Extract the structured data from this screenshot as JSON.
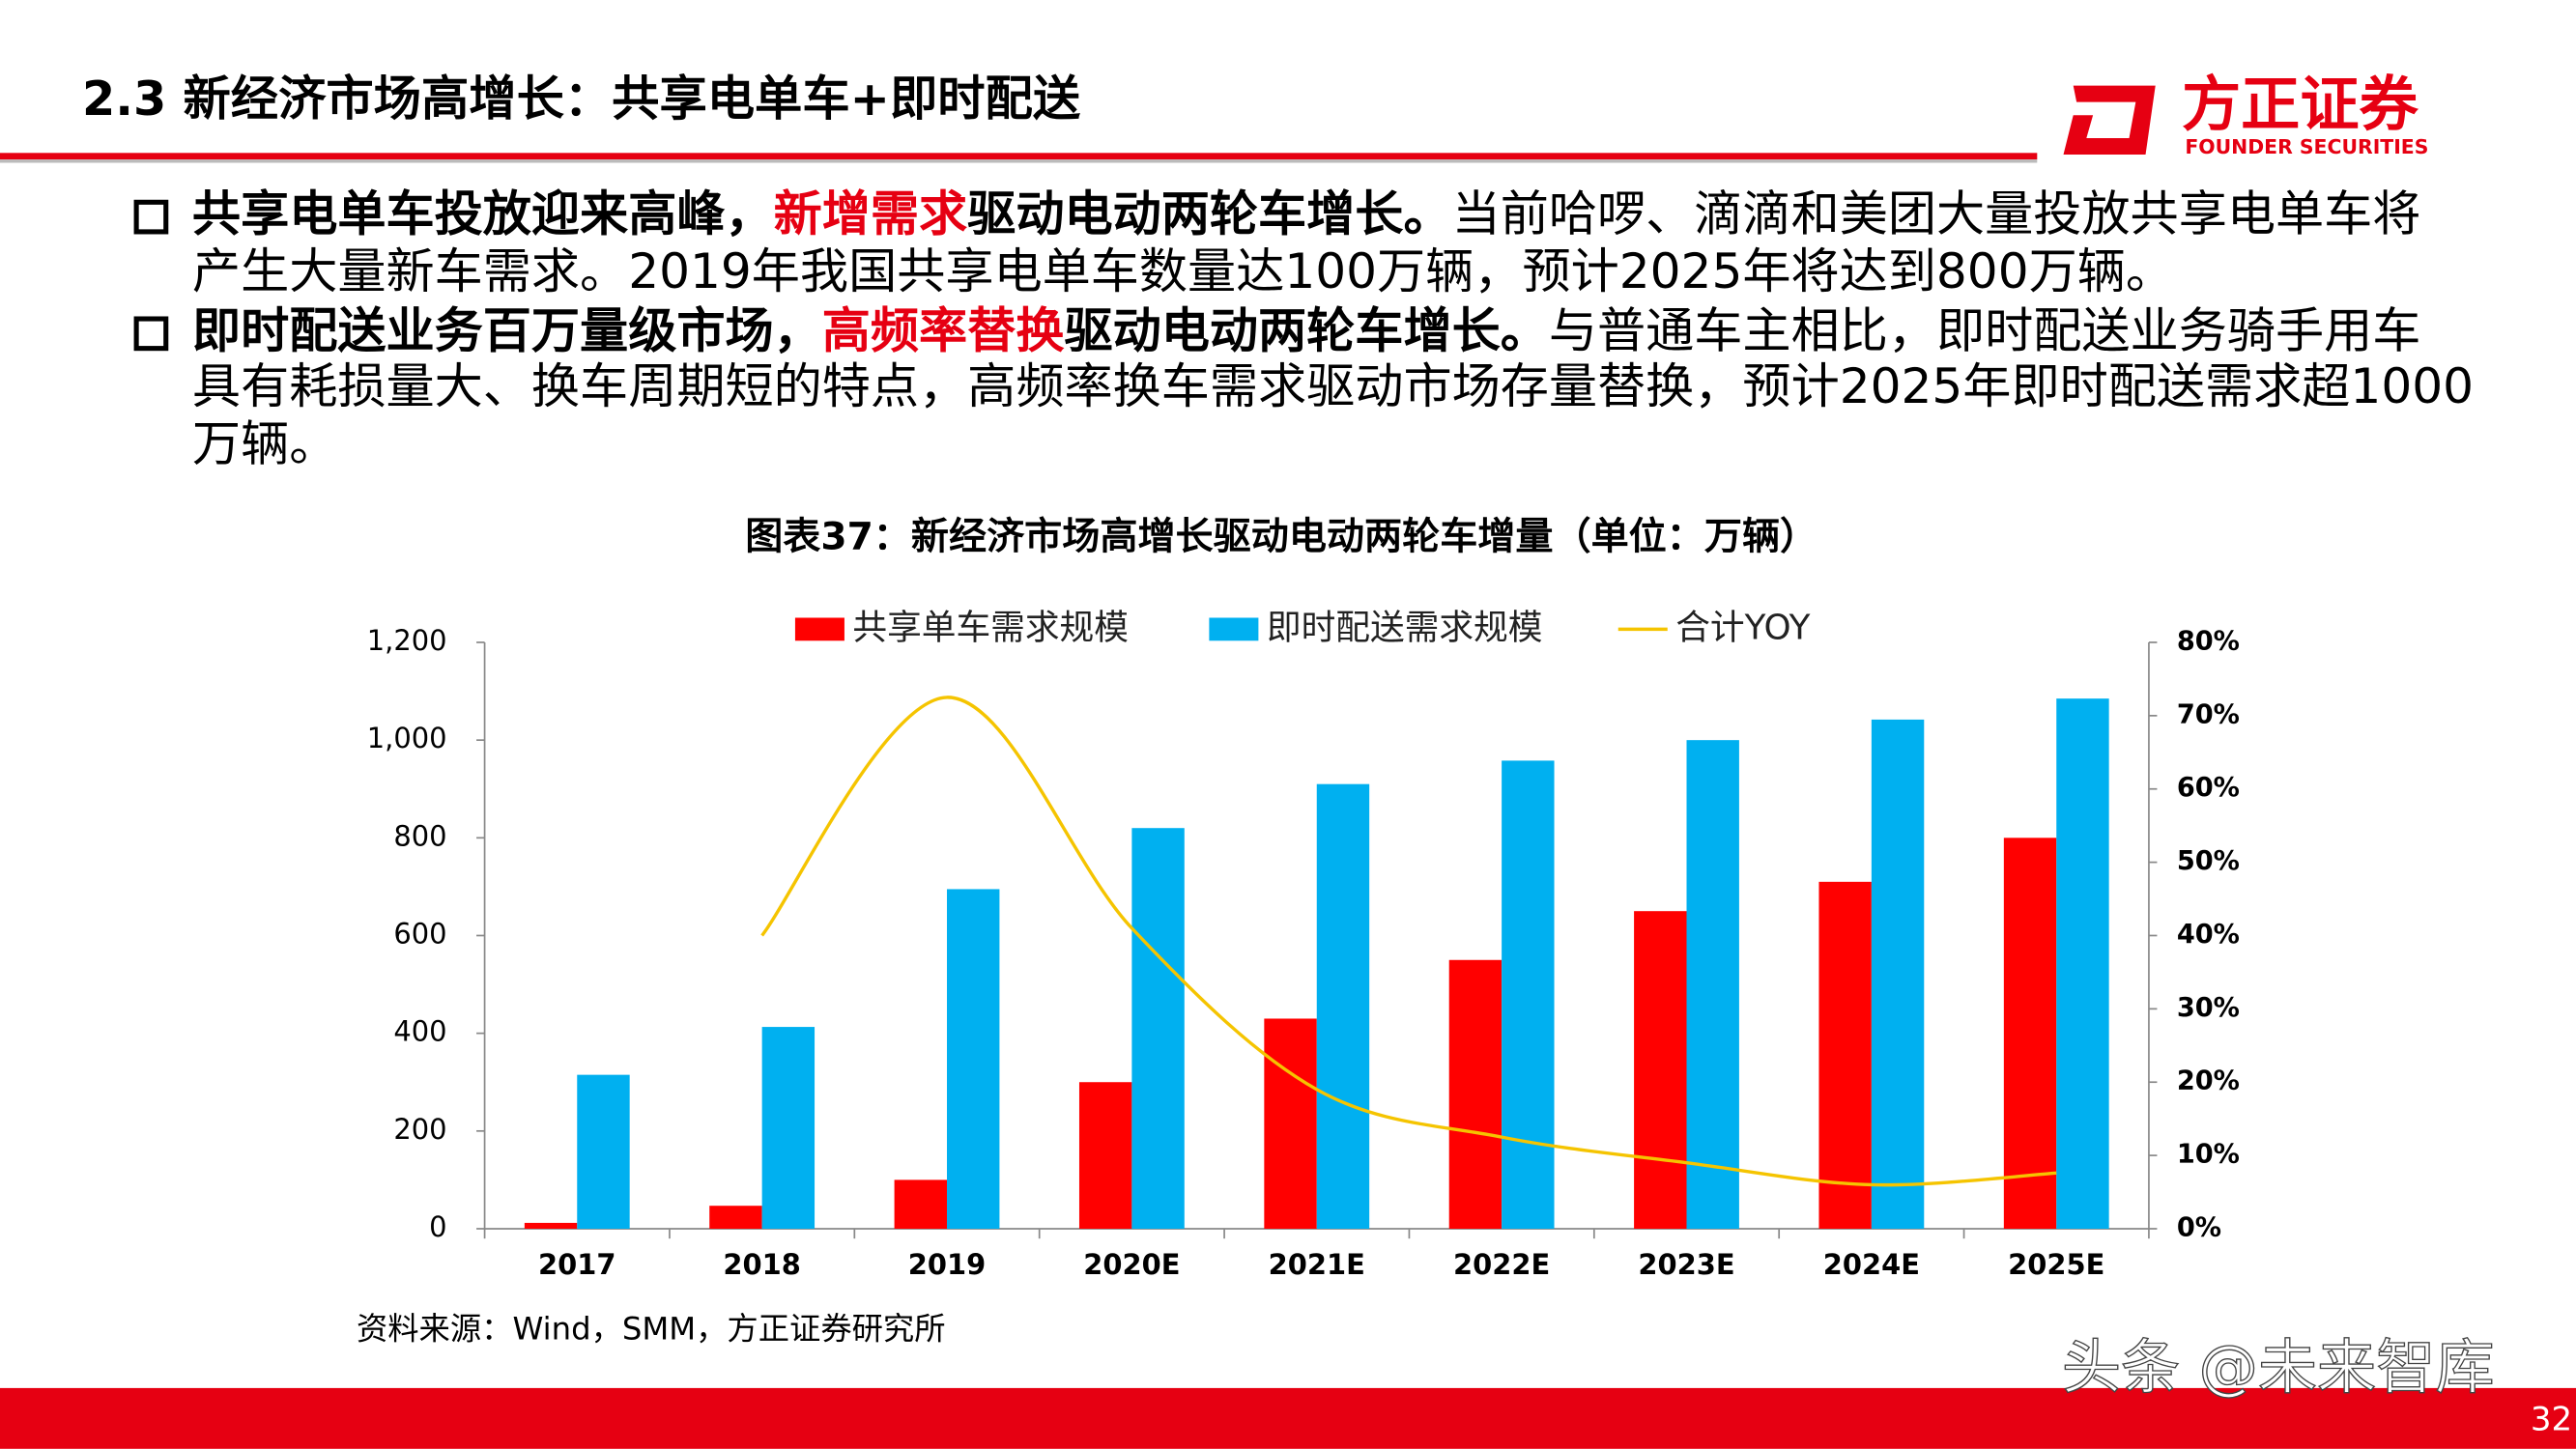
{
  "header": {
    "title": "2.3 新经济市场高增长：共享电单车+即时配送",
    "logo_cn": "方正证券",
    "logo_en": "FOUNDER SECURITIES"
  },
  "bullets": [
    {
      "lines": [
        [
          {
            "text": "共享电单车投放迎来高峰，",
            "style": "bold"
          },
          {
            "text": "新增需求",
            "style": "red"
          },
          {
            "text": "驱动电动两轮车增长。",
            "style": "bold"
          },
          {
            "text": "当前哈啰、滴滴和美团大量投放共享电单车将",
            "style": "regular"
          }
        ],
        [
          {
            "text": "产生大量新车需求。2019年我国共享电单车数量达100万辆，预计2025年将达到800万辆。",
            "style": "regular"
          }
        ]
      ]
    },
    {
      "lines": [
        [
          {
            "text": "即时配送业务百万量级市场，",
            "style": "bold"
          },
          {
            "text": "高频率替换",
            "style": "red"
          },
          {
            "text": "驱动电动两轮车增长。",
            "style": "bold"
          },
          {
            "text": "与普通车主相比，即时配送业务骑手用车",
            "style": "regular"
          }
        ],
        [
          {
            "text": "具有耗损量大、换车周期短的特点，高频率换车需求驱动市场存量替换，预计2025年即时配送需求超1000",
            "style": "regular"
          }
        ],
        [
          {
            "text": "万辆。",
            "style": "regular"
          }
        ]
      ]
    }
  ],
  "chart_data": {
    "type": "bar",
    "title": "图表37：新经济市场高增长驱动电动两轮车增量（单位：万辆）",
    "categories": [
      "2017",
      "2018",
      "2019",
      "2020E",
      "2021E",
      "2022E",
      "2023E",
      "2024E",
      "2025E"
    ],
    "series": [
      {
        "name": "共享单车需求规模",
        "type": "bar",
        "color": "#ff0000",
        "values": [
          12,
          47,
          100,
          300,
          430,
          550,
          650,
          710,
          800
        ]
      },
      {
        "name": "即时配送需求规模",
        "type": "bar",
        "color": "#00b0f0",
        "values": [
          315,
          413,
          695,
          820,
          910,
          958,
          1000,
          1042,
          1085
        ]
      },
      {
        "name": "合计YOY",
        "type": "line",
        "axis": "y2",
        "color": "#f5c400",
        "values": [
          null,
          40,
          72.5,
          41,
          19,
          12.5,
          9,
          6,
          7.6
        ]
      }
    ],
    "ylim": [
      0,
      1200
    ],
    "yticks": [
      0,
      200,
      400,
      600,
      800,
      {
        "value": 1000,
        "label": "1,000"
      },
      {
        "value": 1200,
        "label": "1,200"
      }
    ],
    "y2lim": [
      0,
      80
    ],
    "y2ticks": [
      {
        "value": 0,
        "label": "0%"
      },
      {
        "value": 10,
        "label": "10%"
      },
      {
        "value": 20,
        "label": "20%"
      },
      {
        "value": 30,
        "label": "30%"
      },
      {
        "value": 40,
        "label": "40%"
      },
      {
        "value": 50,
        "label": "50%"
      },
      {
        "value": 60,
        "label": "60%"
      },
      {
        "value": 70,
        "label": "70%"
      },
      {
        "value": 80,
        "label": "80%"
      }
    ],
    "legend": "top",
    "grid": false,
    "source": "资料来源：Wind，SMM，方正证券研究所"
  },
  "footer": {
    "watermark": "头条 @未来智库",
    "page": "32"
  }
}
